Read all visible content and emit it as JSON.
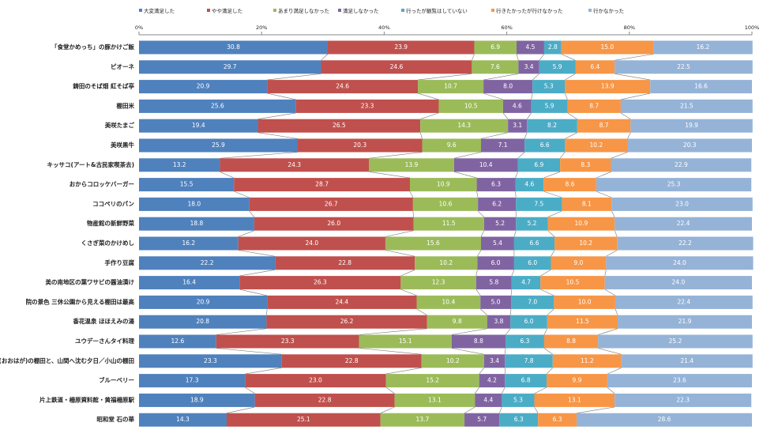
{
  "chart_data": {
    "type": "stacked_bar_100",
    "orientation": "horizontal",
    "categories": [
      "「食堂かめっち」の豚かけご飯",
      "ピオーネ",
      "鋳田のそば畑 紅そば亭",
      "棚田米",
      "美咲たまご",
      "美咲黒牛",
      "キッサコ(アート&古民家喫茶去)",
      "おからコロッケバーガー",
      "ココペリのパン",
      "物産館の新鮮野菜",
      "くさぎ菜のかけめし",
      "手作り豆腐",
      "美の南地区の葉ワサビの醤油漬け",
      "院の景色 三休公園から見える棚田は最高",
      "香花温泉 ほほえみの湯",
      "ユウデーさんタイ料理",
      "大垪和(おおはが)の棚田と、山間へ沈む夕日／小山の棚田",
      "ブルーベリー",
      "片上鉄道・柵原資料館・黄福柵原駅",
      "昭和堂 石の華"
    ],
    "series": [
      {
        "name": "大変満足した",
        "color": "#4f81bd",
        "values": [
          30.8,
          29.7,
          20.9,
          25.6,
          19.4,
          25.9,
          13.2,
          15.5,
          18.0,
          18.8,
          16.2,
          22.2,
          16.4,
          20.9,
          20.8,
          12.6,
          23.3,
          17.3,
          18.9,
          14.3
        ],
        "value_labels": [
          "30.8",
          "29.7",
          "20.9",
          "25.6",
          "19.4",
          "25.9",
          "13.2",
          "15.5",
          "18.0",
          "18.8",
          "16.2",
          "22.2",
          "16.4",
          "20.9",
          "20.8",
          "12.6",
          "23.3",
          "17.3",
          "18.9",
          "14.3"
        ]
      },
      {
        "name": "やや満足した",
        "color": "#c0504d",
        "values": [
          23.9,
          24.6,
          24.6,
          23.3,
          26.5,
          20.3,
          24.3,
          28.7,
          26.7,
          26.0,
          24.0,
          22.8,
          26.3,
          24.4,
          26.2,
          23.3,
          22.8,
          23.0,
          22.8,
          25.1
        ],
        "value_labels": [
          "23.9",
          "24.6",
          "24.6",
          "23.3",
          "26.5",
          "20.3",
          "24.3",
          "28.7",
          "26.7",
          "26.0",
          "24.0",
          "22.8",
          "26.3",
          "24.4",
          "26.2",
          "23.3",
          "22.8",
          "23.0",
          "22.8",
          "25.1"
        ]
      },
      {
        "name": "あまり満足しなかった",
        "color": "#9bbb59",
        "values": [
          6.9,
          7.6,
          10.7,
          10.5,
          14.3,
          9.6,
          13.9,
          10.9,
          10.6,
          11.5,
          15.6,
          10.2,
          12.3,
          10.4,
          9.8,
          15.1,
          10.2,
          15.2,
          13.1,
          13.7
        ],
        "value_labels": [
          "6.9",
          "7.6",
          "10.7",
          "10.5",
          "14.3",
          "9.6",
          "13.9",
          "10.9",
          "10.6",
          "11.5",
          "15.6",
          "10.2",
          "12.3",
          "10.4",
          "9.8",
          "15.1",
          "10.2",
          "15.2",
          "13.1",
          "13.7"
        ]
      },
      {
        "name": "満足しなかった",
        "color": "#8064a2",
        "values": [
          4.5,
          3.4,
          8.0,
          4.6,
          3.1,
          7.1,
          10.4,
          6.3,
          6.2,
          5.2,
          5.4,
          6.0,
          5.8,
          5.0,
          3.8,
          8.8,
          3.4,
          4.2,
          4.4,
          5.7
        ],
        "value_labels": [
          "4.5",
          "3.4",
          "8.0",
          "4.6",
          "3.1",
          "7.1",
          "10.4",
          "6.3",
          "6.2",
          "5.2",
          "5.4",
          "6.0",
          "5.8",
          "5.0",
          "3.8",
          "8.8",
          "3.4",
          "4.2",
          "4.4",
          "5.7"
        ]
      },
      {
        "name": "行ったが観覧はしていない",
        "color": "#4bacc6",
        "values": [
          2.8,
          5.9,
          5.3,
          5.9,
          8.2,
          6.6,
          6.9,
          4.6,
          7.5,
          5.2,
          6.6,
          6.0,
          4.7,
          7.0,
          6.0,
          6.3,
          7.8,
          6.8,
          5.3,
          6.3
        ],
        "value_labels": [
          "2.8",
          "5.9",
          "5.3",
          "5.9",
          "8.2",
          "6.6",
          "6.9",
          "4.6",
          "7.5",
          "5.2",
          "6.6",
          "6.0",
          "4.7",
          "7.0",
          "6.0",
          "6.3",
          "7.8",
          "6.8",
          "5.3",
          "6.3"
        ]
      },
      {
        "name": "行きたかったが行けなかった",
        "color": "#f79646",
        "values": [
          15.0,
          6.4,
          13.9,
          8.7,
          8.7,
          10.2,
          8.3,
          8.6,
          8.1,
          10.9,
          10.2,
          9.0,
          10.5,
          10.0,
          11.5,
          8.8,
          11.2,
          9.9,
          13.1,
          6.3
        ],
        "value_labels": [
          "15.0",
          "6.4",
          "13.9",
          "8.7",
          "8.7",
          "10.2",
          "8.3",
          "8.6",
          "8.1",
          "10.9",
          "10.2",
          "9.0",
          "10.5",
          "10.0",
          "11.5",
          "8.8",
          "11.2",
          "9.9",
          "13.1",
          "6.3"
        ]
      },
      {
        "name": "行かなかった",
        "color": "#95b3d7",
        "values": [
          16.2,
          22.5,
          16.6,
          21.5,
          19.9,
          20.3,
          22.9,
          25.3,
          23.0,
          22.4,
          22.2,
          24.0,
          24.0,
          22.4,
          21.9,
          25.2,
          21.4,
          23.6,
          22.3,
          28.6
        ],
        "value_labels": [
          "16.2",
          "22.5",
          "16.6",
          "21.5",
          "19.9",
          "20.3",
          "22.9",
          "25.3",
          "23.0",
          "22.4",
          "22.2",
          "24.0",
          "24.0",
          "22.4",
          "21.9",
          "25.2",
          "21.4",
          "23.6",
          "22.3",
          "28.6"
        ]
      }
    ],
    "xlim": [
      0,
      100
    ],
    "xticks": [
      {
        "value": 0,
        "label": "0%"
      },
      {
        "value": 20,
        "label": "20%"
      },
      {
        "value": 40,
        "label": "40%"
      },
      {
        "value": 60,
        "label": "60%"
      },
      {
        "value": 80,
        "label": "80%"
      },
      {
        "value": 100,
        "label": "100%"
      }
    ],
    "legend": "top"
  }
}
